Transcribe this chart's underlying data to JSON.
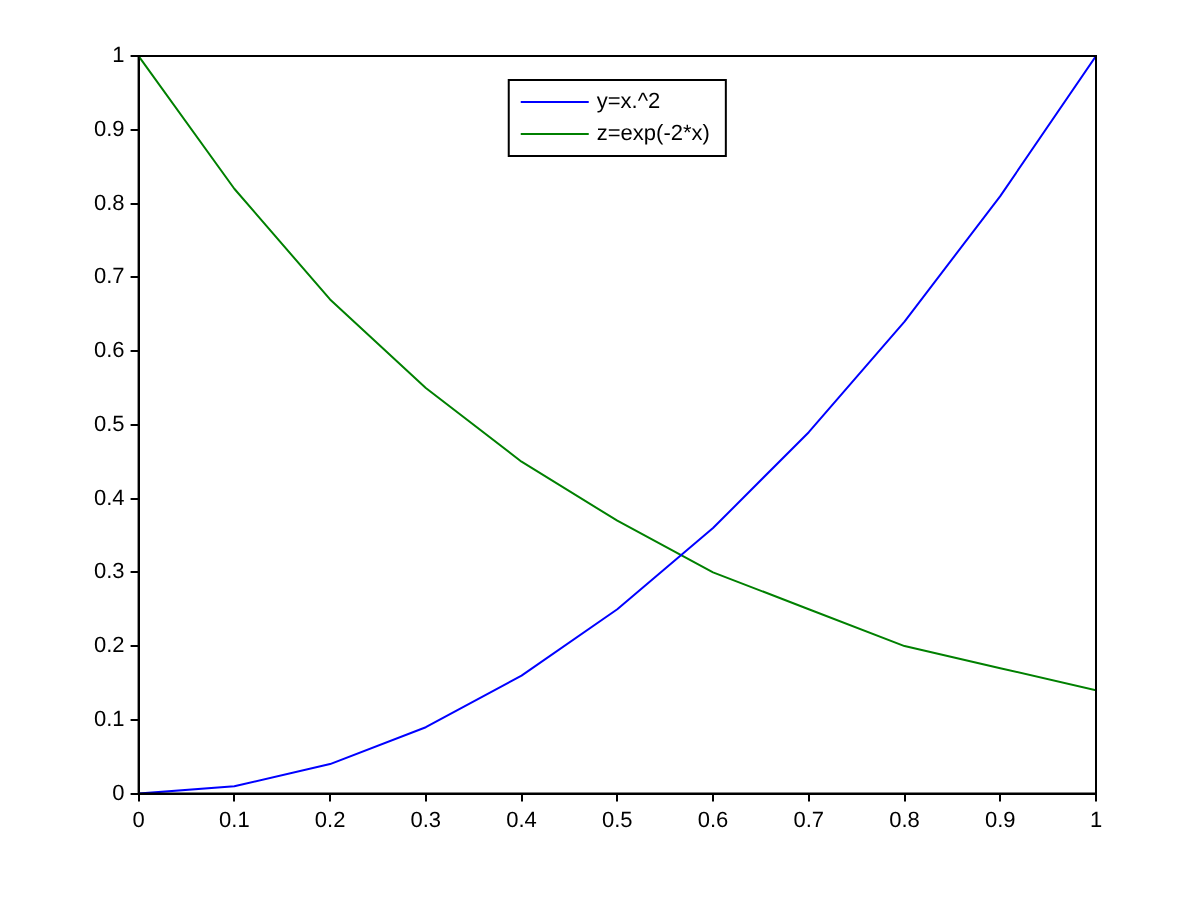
{
  "chart_data": {
    "type": "line",
    "x": [
      0,
      0.1,
      0.2,
      0.3,
      0.4,
      0.5,
      0.6,
      0.7,
      0.8,
      0.9,
      1
    ],
    "series": [
      {
        "name": "y=x.^2",
        "color": "#0000ff",
        "values": [
          0,
          0.01,
          0.04,
          0.09,
          0.16,
          0.25,
          0.36,
          0.49,
          0.64,
          0.81,
          1
        ]
      },
      {
        "name": "z=exp(-2*x)",
        "color": "#008000",
        "values": [
          1,
          0.82,
          0.67,
          0.55,
          0.45,
          0.37,
          0.3,
          0.25,
          0.2,
          0.17,
          0.14
        ]
      }
    ],
    "xlim": [
      0,
      1
    ],
    "xticks": [
      0,
      0.1,
      0.2,
      0.3,
      0.4,
      0.5,
      0.6,
      0.7,
      0.8,
      0.9,
      1
    ],
    "ylim": [
      0,
      1
    ],
    "yticks": [
      0,
      0.1,
      0.2,
      0.3,
      0.4,
      0.5,
      0.6,
      0.7,
      0.8,
      0.9,
      1
    ],
    "grid": false,
    "legend": "top",
    "marker": "none",
    "line_style": "solid"
  }
}
